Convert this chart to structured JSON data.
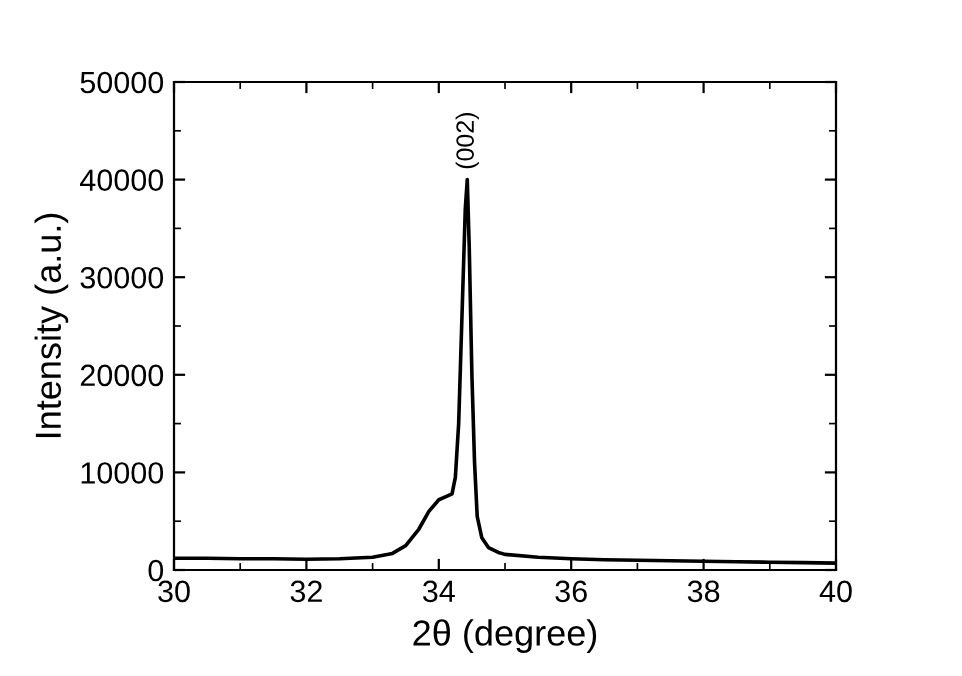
{
  "chart_data": {
    "type": "line",
    "xlabel": "2θ (degree)",
    "ylabel": "Intensity (a.u.)",
    "x": [
      30,
      30.5,
      31,
      31.5,
      32,
      32.5,
      33,
      33.3,
      33.5,
      33.7,
      33.85,
      34.0,
      34.1,
      34.2,
      34.25,
      34.3,
      34.35,
      34.4,
      34.43,
      34.46,
      34.5,
      34.54,
      34.58,
      34.65,
      34.75,
      34.9,
      35.0,
      35.5,
      36,
      36.5,
      37,
      37.5,
      38,
      38.5,
      39,
      39.5,
      40
    ],
    "series": [
      {
        "color": "#000000",
        "values": [
          1200,
          1200,
          1150,
          1150,
          1100,
          1150,
          1300,
          1700,
          2500,
          4200,
          6000,
          7200,
          7500,
          7800,
          9500,
          15000,
          26000,
          37000,
          40000,
          33000,
          20000,
          11000,
          5500,
          3300,
          2300,
          1800,
          1600,
          1300,
          1150,
          1050,
          1000,
          950,
          900,
          850,
          800,
          750,
          700
        ]
      }
    ],
    "xlim": [
      30,
      40
    ],
    "ylim": [
      0,
      50000
    ],
    "xticks": [
      30,
      32,
      34,
      36,
      38,
      40
    ],
    "yticks": [
      0,
      10000,
      20000,
      30000,
      40000,
      50000
    ],
    "annotations": [
      {
        "text": "(002)",
        "x": 34.43,
        "y": 41000
      }
    ],
    "grid": false,
    "legend": false,
    "marker": "none",
    "line_style": "solid"
  }
}
